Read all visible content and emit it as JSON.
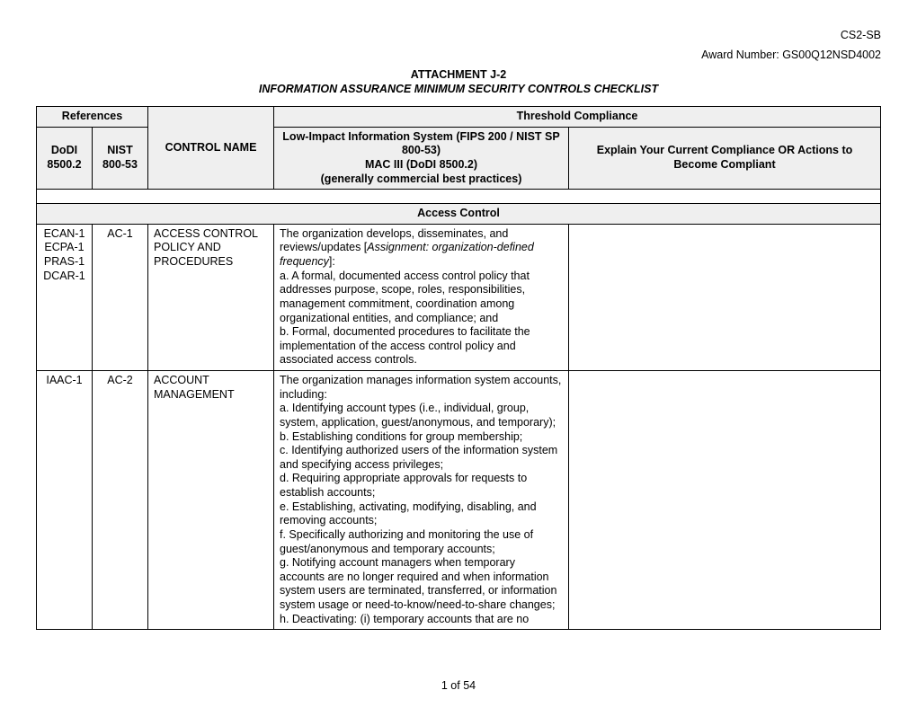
{
  "header": {
    "code": "CS2-SB",
    "award": "Award Number: GS00Q12NSD4002",
    "attachment": "ATTACHMENT J-2",
    "title": "INFORMATION ASSURANCE MINIMUM SECURITY CONTROLS CHECKLIST"
  },
  "table": {
    "head": {
      "references": "References",
      "threshold": "Threshold Compliance",
      "dodi": "DoDI 8500.2",
      "nist": "NIST 800-53",
      "control_name": "CONTROL NAME",
      "fips_line1": "Low-Impact Information System (FIPS 200 / NIST SP 800-53)",
      "fips_line2": "MAC III (DoDI 8500.2)",
      "fips_line3": "(generally commercial best practices)",
      "explain": "Explain Your Current Compliance OR Actions to Become Compliant"
    },
    "section": "Access Control",
    "rows": [
      {
        "dodi": "ECAN-1\nECPA-1\nPRAS-1\nDCAR-1",
        "nist": "AC-1",
        "name": "ACCESS CONTROL POLICY AND PROCEDURES",
        "desc": "The organization develops, disseminates, and reviews/updates [Assignment: organization-defined frequency]:\na. A formal, documented access control policy that addresses purpose, scope, roles, responsibilities, management commitment, coordination among organizational entities, and compliance; and\nb. Formal, documented procedures to facilitate the implementation of the access control policy and associated access controls.",
        "compliance": ""
      },
      {
        "dodi": "IAAC-1",
        "nist": "AC-2",
        "name": "ACCOUNT MANAGEMENT",
        "desc": "The organization manages information system accounts, including:\na. Identifying account types (i.e., individual, group, system, application, guest/anonymous, and temporary);\nb. Establishing conditions for group membership;\nc. Identifying authorized users of the information system and specifying access privileges;\nd. Requiring appropriate approvals for requests to establish accounts;\ne. Establishing, activating, modifying, disabling, and removing accounts;\nf. Specifically authorizing and monitoring the use of guest/anonymous and temporary accounts;\ng. Notifying account managers when temporary accounts are no longer required and when information system users are terminated, transferred, or information system usage or need-to-know/need-to-share changes;\nh. Deactivating: (i) temporary accounts that are no",
        "compliance": ""
      }
    ]
  },
  "footer": {
    "page": "1 of 54"
  }
}
